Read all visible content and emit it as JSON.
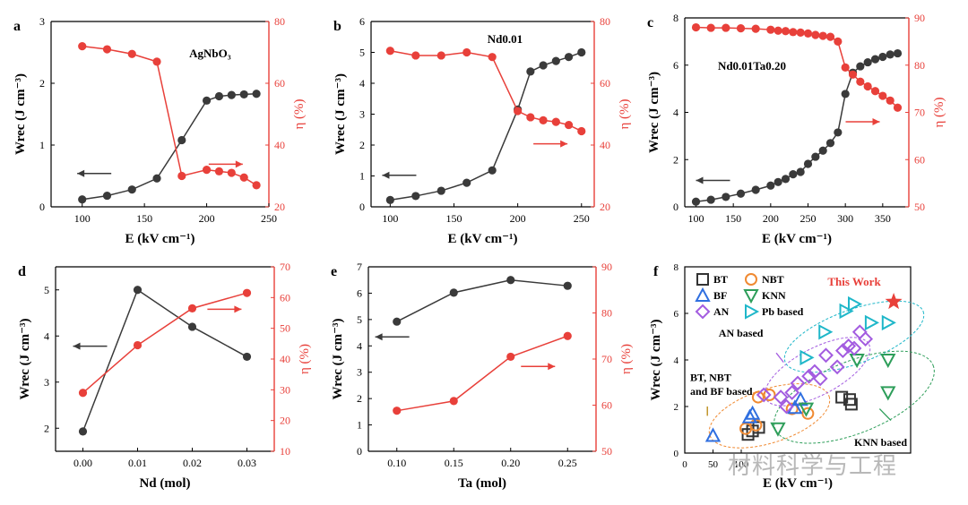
{
  "watermark": "材料科学与工程",
  "colors": {
    "black": "#3a3a3a",
    "red": "#e8403a",
    "axis": "#000000",
    "BT": "#333333",
    "NBT": "#f08a32",
    "BF": "#2f6fe0",
    "KNN": "#2e9e5a",
    "AN": "#a35ce0",
    "Pb": "#1fb7c9",
    "star": "#e8403a"
  },
  "chart_data": [
    {
      "label": "a",
      "type": "line",
      "dual_axis": true,
      "title": "AgNbO₃",
      "xlabel": "E (kV cm⁻¹)",
      "ylabel": "Wrec (J cm⁻³)",
      "y2label": "η (%)",
      "xlim": [
        75,
        250
      ],
      "ylim": [
        0,
        3
      ],
      "y2lim": [
        20,
        80
      ],
      "xticks": [
        100,
        150,
        200,
        250
      ],
      "yticks": [
        0,
        1,
        2,
        3
      ],
      "y2ticks": [
        20,
        40,
        60,
        80
      ],
      "series": [
        {
          "name": "Wrec",
          "axis": "left",
          "color": "black",
          "x": [
            100,
            120,
            140,
            160,
            180,
            200,
            210,
            220,
            230,
            240
          ],
          "y": [
            0.12,
            0.18,
            0.28,
            0.46,
            1.08,
            1.72,
            1.79,
            1.81,
            1.82,
            1.83
          ]
        },
        {
          "name": "η",
          "axis": "right",
          "color": "red",
          "x": [
            100,
            120,
            140,
            160,
            180,
            200,
            210,
            220,
            230,
            240
          ],
          "y": [
            72,
            71,
            69.5,
            67,
            30,
            32,
            31.5,
            31,
            29.5,
            27
          ]
        }
      ],
      "arrows": [
        {
          "dir": "left",
          "color": "black"
        },
        {
          "dir": "right",
          "color": "red"
        }
      ]
    },
    {
      "label": "b",
      "type": "line",
      "dual_axis": true,
      "title": "Nd0.01",
      "xlabel": "E (kV cm⁻¹)",
      "ylabel": "Wrec (J cm⁻³)",
      "y2label": "η (%)",
      "xlim": [
        85,
        260
      ],
      "ylim": [
        0,
        6
      ],
      "y2lim": [
        20,
        80
      ],
      "xticks": [
        100,
        150,
        200,
        250
      ],
      "yticks": [
        0,
        1,
        2,
        3,
        4,
        5,
        6
      ],
      "y2ticks": [
        20,
        40,
        60,
        80
      ],
      "series": [
        {
          "name": "Wrec",
          "axis": "left",
          "color": "black",
          "x": [
            100,
            120,
            140,
            160,
            180,
            200,
            210,
            220,
            230,
            240,
            250
          ],
          "y": [
            0.22,
            0.35,
            0.52,
            0.78,
            1.18,
            3.15,
            4.38,
            4.58,
            4.72,
            4.85,
            5.0
          ],
          "y2_pairs": []
        },
        {
          "name": "η",
          "axis": "right",
          "color": "red",
          "x": [
            100,
            120,
            140,
            160,
            180,
            200,
            210,
            220,
            230,
            240,
            250
          ],
          "y": [
            70.5,
            69,
            69,
            70,
            68.5,
            51,
            49,
            48,
            47.5,
            46.5,
            44.5
          ]
        }
      ],
      "arrows": [
        {
          "dir": "left",
          "color": "black"
        },
        {
          "dir": "right",
          "color": "red"
        }
      ]
    },
    {
      "label": "c",
      "type": "line",
      "dual_axis": true,
      "title": "Nd0.01Ta0.20",
      "xlabel": "E (kV cm⁻¹)",
      "ylabel": "Wrec (J cm⁻³)",
      "y2label": "η (%)",
      "xlim": [
        85,
        385
      ],
      "ylim": [
        0,
        8
      ],
      "y2lim": [
        50,
        90
      ],
      "xticks": [
        100,
        150,
        200,
        250,
        300,
        350
      ],
      "yticks": [
        0,
        2,
        4,
        6,
        8
      ],
      "y2ticks": [
        50,
        60,
        70,
        80,
        90
      ],
      "series": [
        {
          "name": "Wrec",
          "axis": "left",
          "color": "black",
          "x": [
            100,
            120,
            140,
            160,
            180,
            200,
            210,
            220,
            230,
            240,
            250,
            260,
            270,
            280,
            290,
            300,
            310,
            320,
            330,
            340,
            350,
            360,
            370
          ],
          "y": [
            0.22,
            0.3,
            0.42,
            0.56,
            0.72,
            0.9,
            1.05,
            1.18,
            1.38,
            1.48,
            1.82,
            2.12,
            2.38,
            2.7,
            3.15,
            4.78,
            5.68,
            5.95,
            6.12,
            6.25,
            6.35,
            6.45,
            6.5
          ]
        },
        {
          "name": "η",
          "axis": "right",
          "color": "red",
          "x": [
            100,
            120,
            140,
            160,
            180,
            200,
            210,
            220,
            230,
            240,
            250,
            260,
            270,
            280,
            290,
            300,
            310,
            320,
            330,
            340,
            350,
            360,
            370
          ],
          "y": [
            88,
            87.9,
            87.9,
            87.8,
            87.7,
            87.5,
            87.3,
            87.2,
            87,
            86.9,
            86.7,
            86.4,
            86.2,
            86,
            85,
            79.5,
            78,
            76.5,
            75.5,
            74.5,
            73.5,
            72.5,
            71
          ]
        }
      ],
      "arrows": [
        {
          "dir": "left",
          "color": "black"
        },
        {
          "dir": "right",
          "color": "red"
        }
      ]
    },
    {
      "label": "d",
      "type": "line",
      "dual_axis": true,
      "title": "",
      "xlabel": "Nd (mol)",
      "ylabel": "Wrec (J cm⁻³)",
      "y2label": "η (%)",
      "xlim": [
        -0.005,
        0.035
      ],
      "ylim": [
        1.5,
        5.5
      ],
      "y2lim": [
        10,
        70
      ],
      "xticks": [
        0.0,
        0.01,
        0.02,
        0.03
      ],
      "xtick_labels": [
        "0.00",
        "0.01",
        "0.02",
        "0.03"
      ],
      "yticks": [
        2,
        3,
        4,
        5
      ],
      "y2ticks": [
        10,
        20,
        30,
        40,
        50,
        60,
        70
      ],
      "series": [
        {
          "name": "Wrec",
          "axis": "left",
          "color": "black",
          "x": [
            0.0,
            0.01,
            0.02,
            0.03
          ],
          "y": [
            1.93,
            5.0,
            4.2,
            3.55
          ]
        },
        {
          "name": "η",
          "axis": "right",
          "color": "red",
          "x": [
            0.0,
            0.01,
            0.02,
            0.03
          ],
          "y": [
            29,
            44.5,
            56.5,
            61.5
          ]
        }
      ],
      "arrows": [
        {
          "dir": "left",
          "color": "black"
        },
        {
          "dir": "right",
          "color": "red"
        }
      ]
    },
    {
      "label": "e",
      "type": "line",
      "dual_axis": true,
      "title": "",
      "xlabel": "Ta (mol)",
      "ylabel": "Wrec (J cm⁻³)",
      "y2label": "η (%)",
      "xlim": [
        0.075,
        0.275
      ],
      "ylim": [
        0,
        7
      ],
      "y2lim": [
        50,
        90
      ],
      "xticks": [
        0.1,
        0.15,
        0.2,
        0.25
      ],
      "xtick_labels": [
        "0.10",
        "0.15",
        "0.20",
        "0.25"
      ],
      "yticks": [
        0,
        1,
        2,
        3,
        4,
        5,
        6,
        7
      ],
      "y2ticks": [
        50,
        60,
        70,
        80,
        90
      ],
      "series": [
        {
          "name": "Wrec",
          "axis": "left",
          "color": "black",
          "x": [
            0.1,
            0.15,
            0.2,
            0.25
          ],
          "y": [
            4.92,
            6.02,
            6.5,
            6.28
          ]
        },
        {
          "name": "η",
          "axis": "right",
          "color": "red",
          "x": [
            0.1,
            0.15,
            0.2,
            0.25
          ],
          "y": [
            58.8,
            60.9,
            70.5,
            75
          ]
        }
      ],
      "arrows": [
        {
          "dir": "left",
          "color": "black"
        },
        {
          "dir": "right",
          "color": "red"
        }
      ]
    },
    {
      "label": "f",
      "type": "scatter",
      "title": "",
      "xlabel": "E (kV cm⁻¹)",
      "ylabel": "Wrec (J cm⁻³)",
      "xlim": [
        0,
        400
      ],
      "ylim": [
        0,
        8
      ],
      "xticks": [
        0,
        50,
        100
      ],
      "yticks": [
        0,
        2,
        4,
        6,
        8
      ],
      "legend": [
        {
          "key": "BT",
          "label": "BT"
        },
        {
          "key": "NBT",
          "label": "NBT"
        },
        {
          "key": "BF",
          "label": "BF"
        },
        {
          "key": "KNN",
          "label": "KNN"
        },
        {
          "key": "AN",
          "label": "AN"
        },
        {
          "key": "Pb",
          "label": "Pb based"
        }
      ],
      "annotations": [
        "This Work",
        "AN based",
        "BT, NBT",
        "and BF based",
        "KNN based"
      ],
      "series": [
        {
          "name": "BT",
          "shape": "square",
          "color": "BT",
          "x": [
            112,
            120,
            131,
            278,
            295,
            292
          ],
          "y": [
            0.8,
            0.95,
            1.1,
            2.4,
            2.1,
            2.3
          ]
        },
        {
          "name": "NBT",
          "shape": "circle",
          "color": "NBT",
          "x": [
            108,
            126,
            130,
            150,
            190,
            218
          ],
          "y": [
            1.05,
            1.2,
            2.4,
            2.5,
            1.9,
            1.7
          ]
        },
        {
          "name": "BF",
          "shape": "triangle-up",
          "color": "BF",
          "x": [
            50,
            115,
            120,
            195,
            205
          ],
          "y": [
            0.75,
            1.55,
            1.7,
            1.95,
            2.3
          ]
        },
        {
          "name": "KNN",
          "shape": "triangle-down",
          "color": "KNN",
          "x": [
            165,
            215,
            305,
            360,
            360
          ],
          "y": [
            1.05,
            1.9,
            4.0,
            4.0,
            2.6
          ]
        },
        {
          "name": "AN",
          "shape": "diamond",
          "color": "AN",
          "x": [
            140,
            170,
            180,
            190,
            200,
            220,
            230,
            240,
            250,
            270,
            280,
            290,
            300,
            310,
            320
          ],
          "y": [
            2.5,
            2.4,
            2.0,
            2.6,
            3.0,
            3.3,
            3.5,
            3.2,
            4.2,
            3.7,
            4.4,
            4.6,
            4.5,
            5.2,
            4.9
          ]
        },
        {
          "name": "Pb",
          "shape": "triangle-right",
          "color": "Pb",
          "x": [
            215,
            248,
            285,
            300,
            330,
            360
          ],
          "y": [
            4.1,
            5.2,
            6.1,
            6.4,
            5.6,
            5.6
          ]
        },
        {
          "name": "This Work",
          "shape": "star",
          "color": "star",
          "x": [
            370
          ],
          "y": [
            6.5
          ]
        }
      ]
    }
  ]
}
